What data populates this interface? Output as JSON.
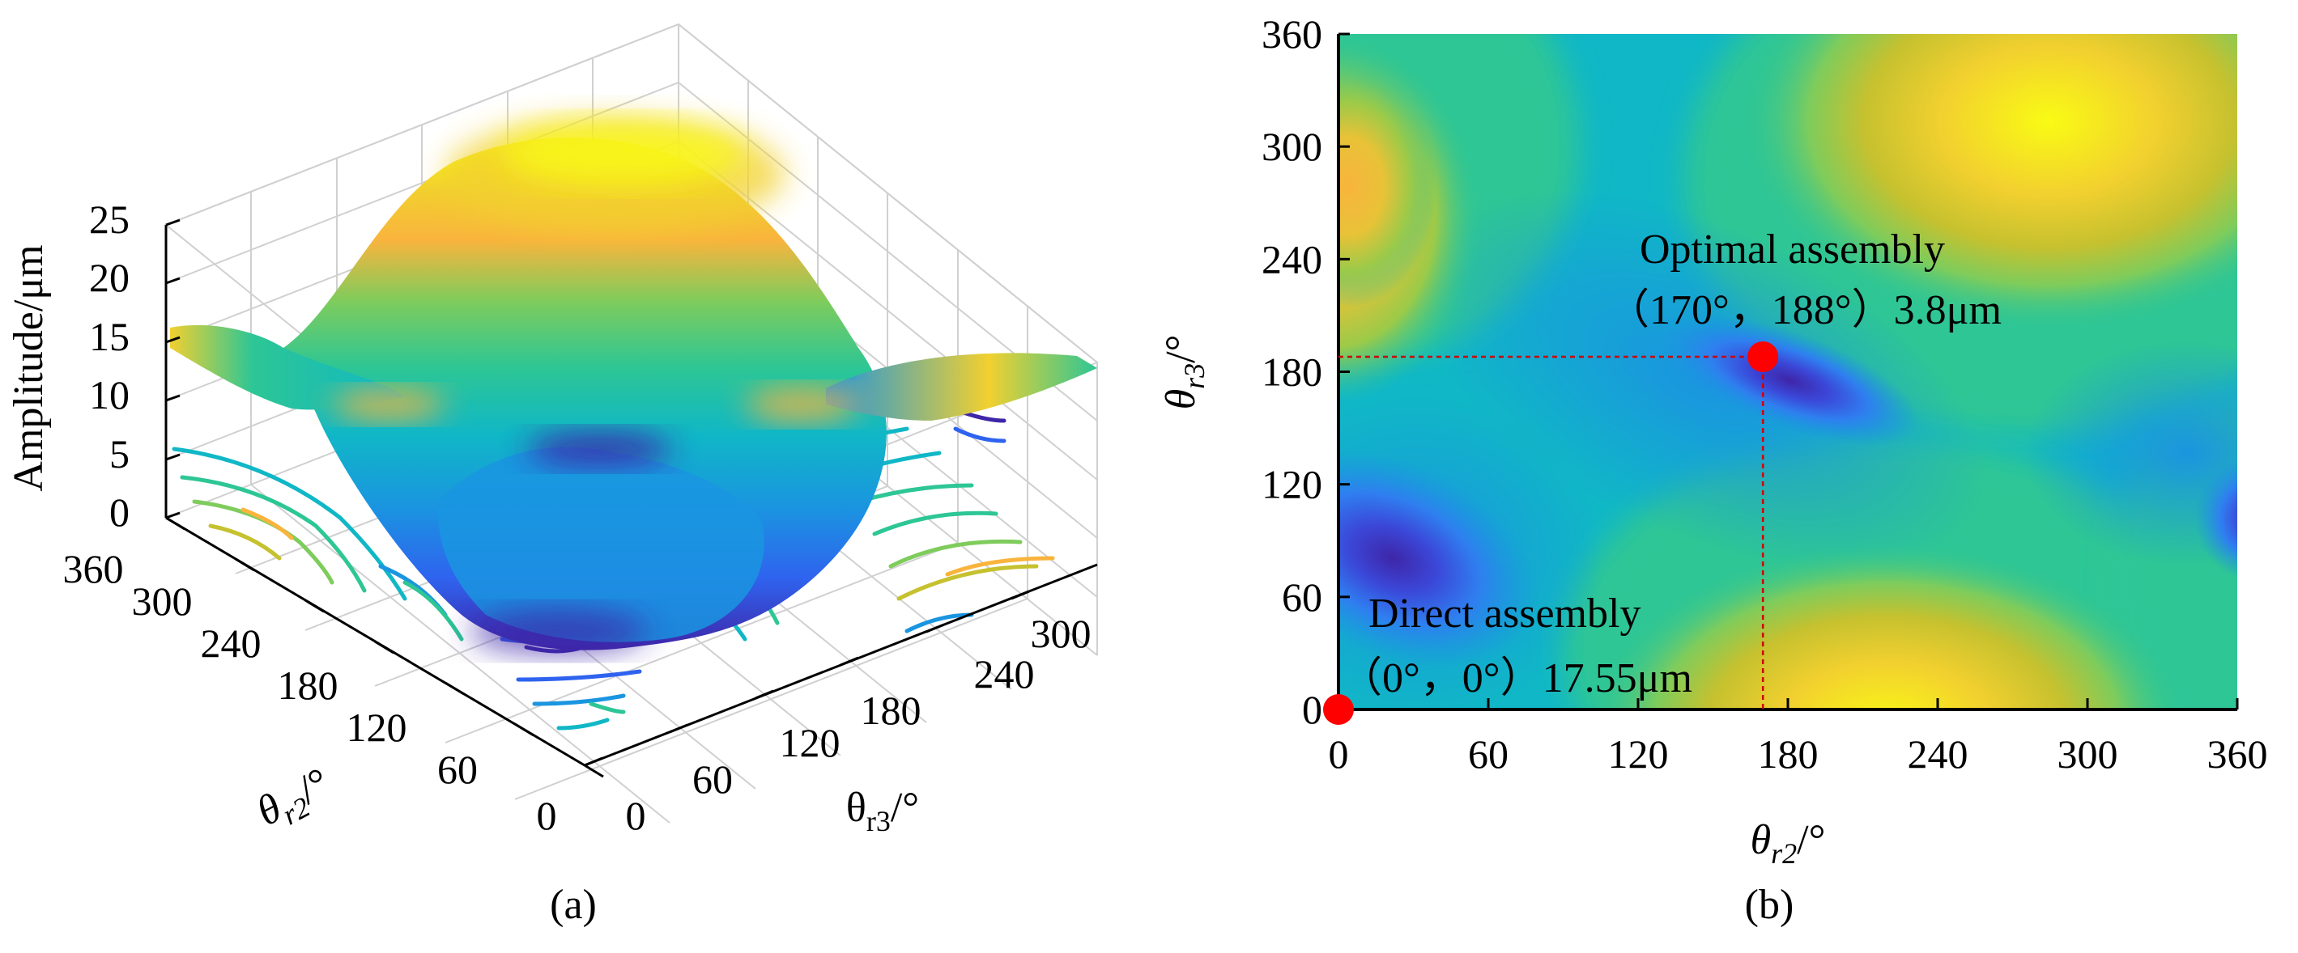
{
  "chart_data": [
    {
      "panel": "(a)",
      "type": "surface3d",
      "zlabel": "Amplitude/μm",
      "xlabel_main": "θ",
      "xlabel_sub": "r2",
      "xlabel_unit": "/°",
      "ylabel_main": "θ",
      "ylabel_sub": "r3",
      "ylabel_unit": "/°",
      "zlim": [
        0,
        25
      ],
      "z_ticks": [
        "0",
        "5",
        "10",
        "15",
        "20",
        "25"
      ],
      "x_ticks": [
        "0",
        "60",
        "120",
        "180",
        "240",
        "300",
        "360"
      ],
      "y_ticks": [
        "0",
        "60",
        "120",
        "180",
        "240",
        "300"
      ],
      "grid": true,
      "contour_projection": true,
      "colormap": [
        "#3e26a8",
        "#2f63ef",
        "#1a95e0",
        "#10b7c6",
        "#2dc695",
        "#7ecc5c",
        "#c6c12f",
        "#f9b43d",
        "#f2d02f",
        "#f9fb14"
      ],
      "surface_description": "amplitude surface over θr2 × θr3 grid, peak ≈ 25 μm near (240°, 300°), minimum ≈ 3.8 μm near (170°, 188°)"
    },
    {
      "panel": "(b)",
      "type": "heatmap",
      "xlabel_main": "θ",
      "xlabel_sub": "r2",
      "xlabel_unit": "/°",
      "ylabel_main": "θ",
      "ylabel_sub": "r3",
      "ylabel_unit": "/°",
      "xlim": [
        0,
        360
      ],
      "ylim": [
        0,
        360
      ],
      "x_ticks": [
        0,
        60,
        120,
        180,
        240,
        300,
        360
      ],
      "y_ticks": [
        0,
        60,
        120,
        180,
        240,
        300,
        360
      ],
      "points": [
        {
          "name": "Optimal assembly",
          "x": 170,
          "y": 188,
          "value": 3.8,
          "label1": "Optimal assembly",
          "label2": "（170°，188°）3.8μm"
        },
        {
          "name": "Direct assembly",
          "x": 0,
          "y": 0,
          "value": 17.55,
          "label1": "Direct assembly",
          "label2": "（0°，0°）17.55μm"
        }
      ],
      "point_color": "#ff0000",
      "guide_color": "#cc0000"
    }
  ],
  "captions": {
    "a": "(a)",
    "b": "(b)"
  }
}
